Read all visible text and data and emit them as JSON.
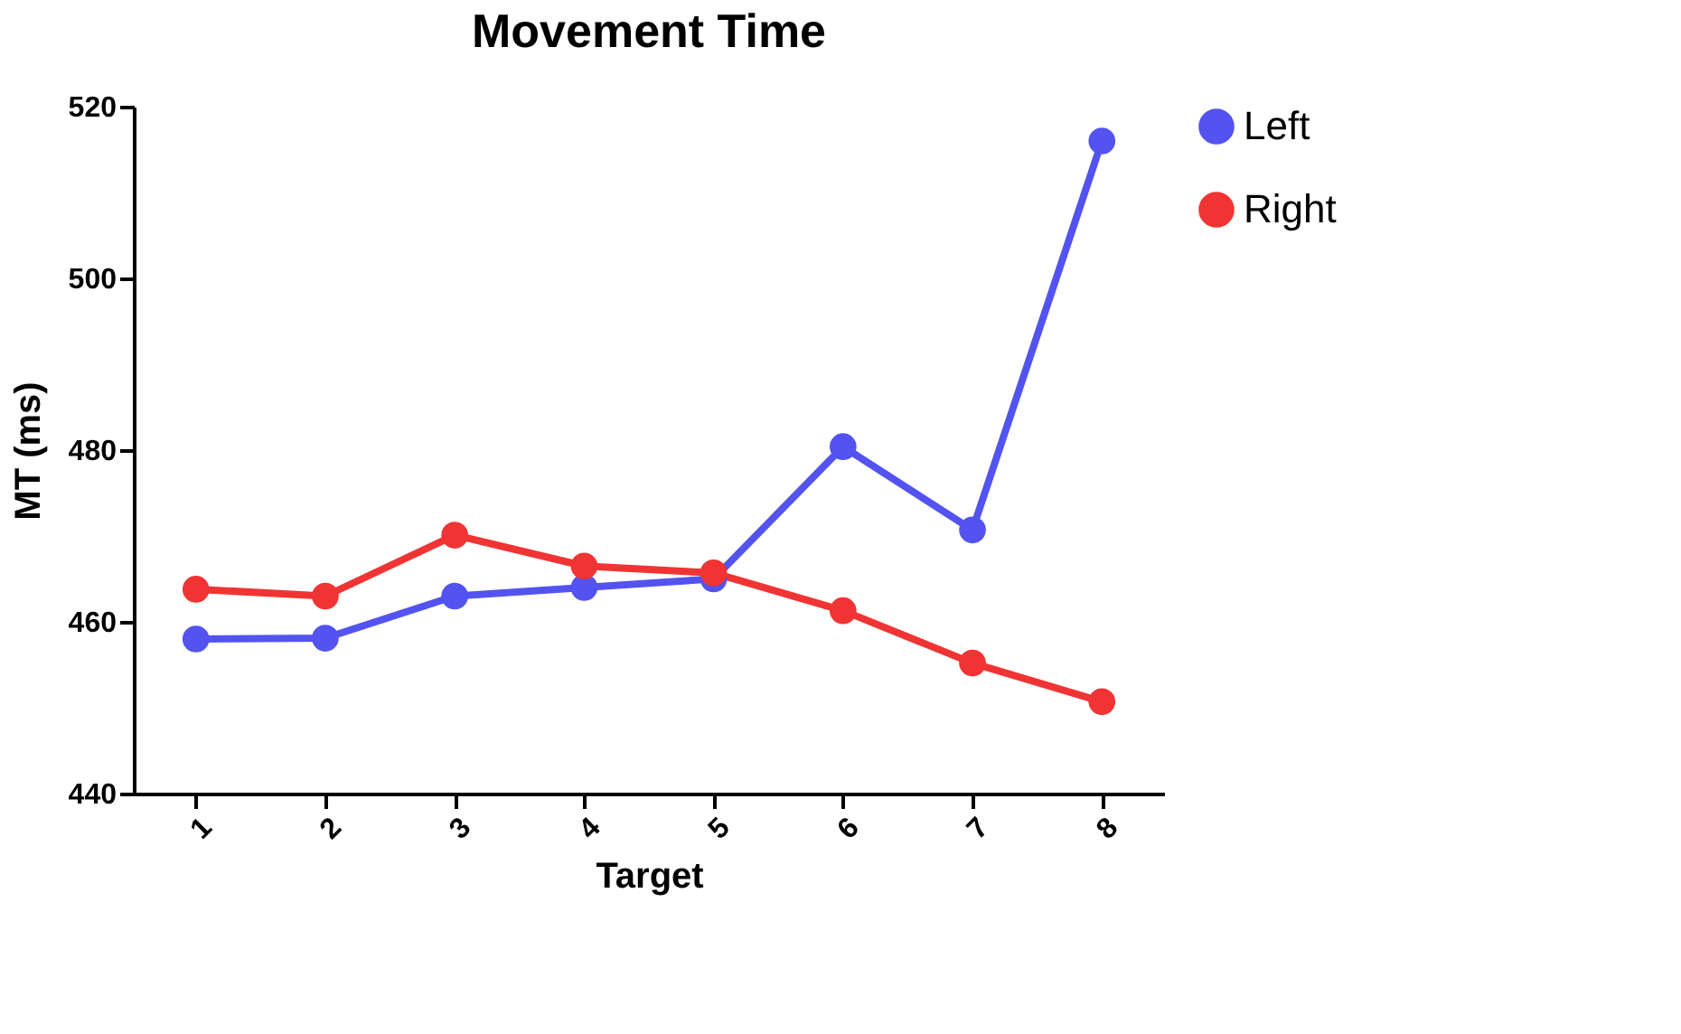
{
  "chart_data": {
    "type": "line",
    "title": "Movement Time",
    "xlabel": "Target",
    "ylabel": "MT (ms)",
    "categories": [
      "1",
      "2",
      "3",
      "4",
      "5",
      "6",
      "7",
      "8"
    ],
    "series": [
      {
        "name": "Left",
        "color": "#5353f0",
        "values": [
          458,
          458.1,
          463,
          464,
          465,
          480.4,
          470.7,
          516
        ]
      },
      {
        "name": "Right",
        "color": "#f03434",
        "values": [
          463.8,
          463,
          470.1,
          466.5,
          465.7,
          461.3,
          455.2,
          450.7
        ]
      }
    ],
    "ylim": [
      440,
      520
    ],
    "yticks": [
      440,
      460,
      480,
      500,
      520
    ],
    "grid": false,
    "legend": "top right",
    "marker": "circle",
    "line_style": "solid"
  }
}
